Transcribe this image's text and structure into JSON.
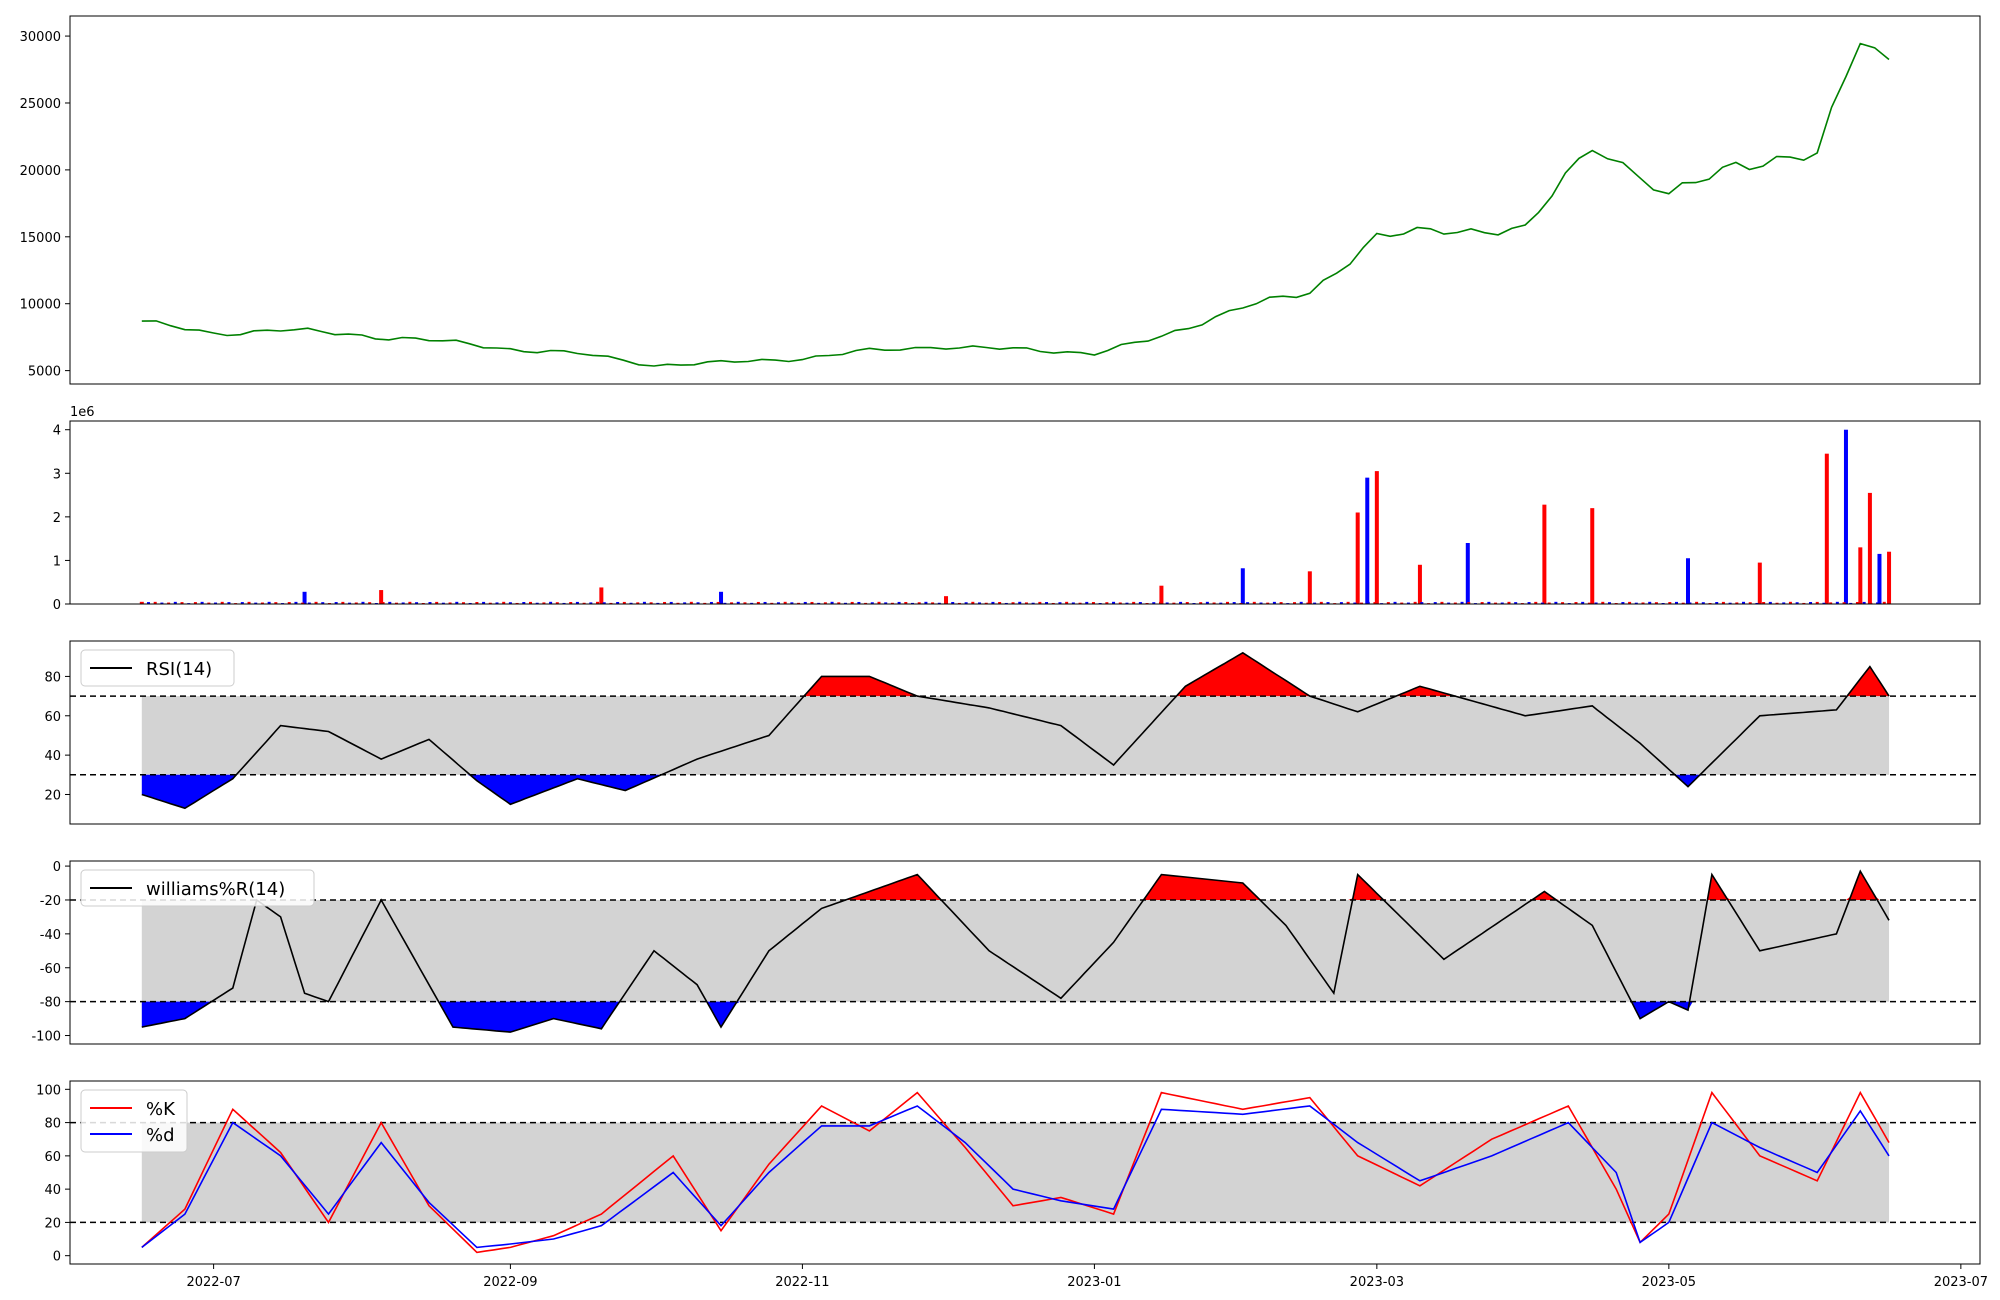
{
  "chart_data": [
    {
      "type": "line",
      "panel": "price",
      "x": [
        "2022-06-16",
        "2022-07-01",
        "2022-07-15",
        "2022-08-01",
        "2022-08-15",
        "2022-09-01",
        "2022-09-15",
        "2022-10-01",
        "2022-10-15",
        "2022-11-01",
        "2022-11-15",
        "2022-12-01",
        "2022-12-15",
        "2023-01-01",
        "2023-01-15",
        "2023-02-01",
        "2023-02-15",
        "2023-03-01",
        "2023-03-15",
        "2023-04-01",
        "2023-04-15",
        "2023-05-01",
        "2023-05-15",
        "2023-06-01",
        "2023-06-10",
        "2023-06-16"
      ],
      "series": [
        {
          "values": [
            8700,
            7700,
            8100,
            7600,
            7300,
            6600,
            6300,
            5400,
            5600,
            5900,
            6500,
            6800,
            6600,
            6300,
            7500,
            9800,
            10800,
            15000,
            15500,
            15500,
            22000,
            18000,
            20500,
            21000,
            30000,
            28200
          ],
          "color": "#008000"
        }
      ],
      "yticks": [
        "5000",
        "10000",
        "15000",
        "20000",
        "25000",
        "30000"
      ],
      "ylim": [
        4000,
        31500
      ],
      "grid": false
    },
    {
      "type": "bar",
      "panel": "volume",
      "scale_label": "1e6",
      "x": [
        "2022-06-16",
        "2022-07-20",
        "2022-08-05",
        "2022-09-20",
        "2022-10-15",
        "2022-12-01",
        "2023-01-15",
        "2023-02-01",
        "2023-02-15",
        "2023-02-25",
        "2023-02-27",
        "2023-03-01",
        "2023-03-10",
        "2023-03-20",
        "2023-04-05",
        "2023-04-15",
        "2023-05-05",
        "2023-05-20",
        "2023-06-03",
        "2023-06-07",
        "2023-06-10",
        "2023-06-12",
        "2023-06-14",
        "2023-06-16"
      ],
      "series": [
        {
          "values": [
            0.05,
            0.28,
            0.32,
            0.38,
            0.28,
            0.18,
            0.42,
            0.82,
            0.75,
            2.1,
            2.9,
            3.05,
            0.9,
            1.4,
            2.28,
            2.2,
            1.05,
            0.95,
            3.45,
            4.0,
            1.3,
            2.55,
            1.15,
            1.2
          ]
        }
      ],
      "up_color": "#ff0000",
      "down_color": "#0000ff",
      "yticks": [
        "0",
        "1",
        "2",
        "3",
        "4"
      ],
      "ylim": [
        0,
        4.2
      ],
      "grid": false
    },
    {
      "type": "line",
      "panel": "rsi",
      "x": [
        "2022-06-16",
        "2022-06-25",
        "2022-07-05",
        "2022-07-15",
        "2022-07-25",
        "2022-08-05",
        "2022-08-15",
        "2022-08-25",
        "2022-09-01",
        "2022-09-15",
        "2022-09-25",
        "2022-10-10",
        "2022-10-25",
        "2022-11-05",
        "2022-11-15",
        "2022-11-25",
        "2022-12-10",
        "2022-12-25",
        "2023-01-05",
        "2023-01-20",
        "2023-02-01",
        "2023-02-15",
        "2023-02-25",
        "2023-03-10",
        "2023-04-01",
        "2023-04-15",
        "2023-04-25",
        "2023-05-05",
        "2023-05-20",
        "2023-06-05",
        "2023-06-12",
        "2023-06-16"
      ],
      "series": [
        {
          "name": "RSI(14)",
          "values": [
            20,
            13,
            28,
            55,
            52,
            38,
            48,
            27,
            15,
            28,
            22,
            38,
            50,
            80,
            80,
            70,
            64,
            55,
            35,
            75,
            92,
            70,
            62,
            75,
            60,
            65,
            46,
            24,
            60,
            63,
            85,
            70
          ]
        }
      ],
      "legend": {
        "entries": [
          "RSI(14)"
        ],
        "placement": "top-left"
      },
      "upper_level": 70,
      "lower_level": 30,
      "yticks": [
        "20",
        "40",
        "60",
        "80"
      ],
      "ylim": [
        5,
        98
      ],
      "grid": false
    },
    {
      "type": "line",
      "panel": "williams",
      "x": [
        "2022-06-16",
        "2022-06-25",
        "2022-07-05",
        "2022-07-10",
        "2022-07-15",
        "2022-07-20",
        "2022-07-25",
        "2022-08-05",
        "2022-08-20",
        "2022-09-01",
        "2022-09-10",
        "2022-09-20",
        "2022-10-01",
        "2022-10-10",
        "2022-10-15",
        "2022-10-25",
        "2022-11-05",
        "2022-11-15",
        "2022-11-25",
        "2022-12-10",
        "2022-12-25",
        "2023-01-05",
        "2023-01-15",
        "2023-02-01",
        "2023-02-10",
        "2023-02-20",
        "2023-02-25",
        "2023-03-15",
        "2023-04-05",
        "2023-04-15",
        "2023-04-25",
        "2023-05-01",
        "2023-05-05",
        "2023-05-10",
        "2023-05-20",
        "2023-06-05",
        "2023-06-10",
        "2023-06-16"
      ],
      "series": [
        {
          "name": "williams%R(14)",
          "values": [
            -95,
            -90,
            -72,
            -20,
            -30,
            -75,
            -80,
            -20,
            -95,
            -98,
            -90,
            -96,
            -50,
            -70,
            -95,
            -50,
            -25,
            -15,
            -5,
            -50,
            -78,
            -45,
            -5,
            -10,
            -35,
            -75,
            -5,
            -55,
            -15,
            -35,
            -90,
            -80,
            -85,
            -5,
            -50,
            -40,
            -3,
            -32
          ]
        }
      ],
      "legend": {
        "entries": [
          "williams%R(14)"
        ],
        "placement": "top-left"
      },
      "upper_level": -20,
      "lower_level": -80,
      "yticks": [
        "-100",
        "-80",
        "-60",
        "-40",
        "-20",
        "0"
      ],
      "ylim": [
        -105,
        3
      ],
      "grid": false
    },
    {
      "type": "line",
      "panel": "stochastic",
      "x": [
        "2022-06-16",
        "2022-06-25",
        "2022-07-05",
        "2022-07-15",
        "2022-07-25",
        "2022-08-05",
        "2022-08-15",
        "2022-08-25",
        "2022-09-01",
        "2022-09-10",
        "2022-09-20",
        "2022-10-05",
        "2022-10-15",
        "2022-10-25",
        "2022-11-05",
        "2022-11-15",
        "2022-11-25",
        "2022-12-05",
        "2022-12-15",
        "2022-12-25",
        "2023-01-05",
        "2023-01-15",
        "2023-02-01",
        "2023-02-15",
        "2023-02-25",
        "2023-03-10",
        "2023-03-25",
        "2023-04-10",
        "2023-04-20",
        "2023-04-25",
        "2023-05-01",
        "2023-05-10",
        "2023-05-20",
        "2023-06-01",
        "2023-06-10",
        "2023-06-16"
      ],
      "series": [
        {
          "name": "%K",
          "color": "#ff0000",
          "values": [
            5,
            28,
            88,
            62,
            20,
            80,
            30,
            2,
            5,
            12,
            25,
            60,
            15,
            55,
            90,
            75,
            98,
            65,
            30,
            35,
            25,
            98,
            88,
            95,
            60,
            42,
            70,
            90,
            40,
            8,
            25,
            98,
            60,
            45,
            98,
            68
          ]
        },
        {
          "name": "%d",
          "color": "#0000ff",
          "values": [
            5,
            25,
            80,
            60,
            25,
            68,
            32,
            5,
            7,
            10,
            18,
            50,
            18,
            50,
            78,
            78,
            90,
            68,
            40,
            33,
            28,
            88,
            85,
            90,
            68,
            45,
            60,
            80,
            50,
            8,
            20,
            80,
            65,
            50,
            87,
            60
          ]
        }
      ],
      "legend": {
        "entries": [
          "%K",
          "%d"
        ],
        "placement": "top-left"
      },
      "upper_level": 80,
      "lower_level": 20,
      "yticks": [
        "0",
        "20",
        "40",
        "60",
        "80",
        "100"
      ],
      "ylim": [
        -5,
        105
      ],
      "grid": false
    }
  ],
  "x_axis": {
    "ticks": [
      "2022-07",
      "2022-09",
      "2022-11",
      "2023-01",
      "2023-03",
      "2023-05",
      "2023-07"
    ],
    "xlim": [
      "2022-06-01",
      "2023-07-05"
    ]
  }
}
